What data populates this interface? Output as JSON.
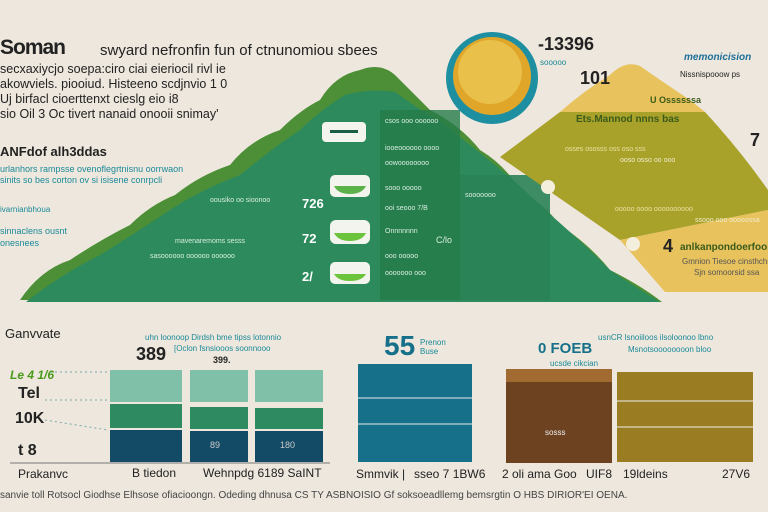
{
  "header": {
    "title": "Soman",
    "subtitle": "swyard nefronfin fun of ctnunomiou sbees",
    "intro_lines": [
      "secxaxiycjo soepa:ciro ciai eieriocil rivl ie",
      "akowviels. piooiud. Histeeno scdjnvio 1 0",
      "Uj birfacl cioerttenxt cieslg eio i8",
      "sio Oil 3 Oc tivert nanaid onooii snimay'"
    ]
  },
  "left_section": {
    "heading": "ANFdof alh3ddas",
    "lines": [
      "urlanhors rampsse ovenoflegrtnisnu oorrwaon",
      "sinits so bes corton ov si isisene conrpcli",
      "ivarnianbhoua",
      "sinnaclens ousnt",
      "onesnees"
    ]
  },
  "green_pyramid": {
    "left_values": [
      "726",
      "72",
      "2/"
    ],
    "left_labels": [
      "oousiko oo sioonoo",
      "mavenaremoms sesss",
      "sasoooooo oooooo oooooo"
    ],
    "right_labels": [
      "csos ooo oooooo",
      "iooeoooooo oooo",
      "oowoooooooo",
      "sooo ooooo",
      "ooi seooo 7/B",
      "Onnnnnnn",
      "ooo ooooo",
      "ooooooo ooo",
      "C/lo",
      "sooooooo"
    ]
  },
  "bowl": {
    "value": "-13396",
    "value2": "101",
    "label": "sooooo"
  },
  "yellow_pyramid": {
    "top_label": "U Ossssssa",
    "band_title": "Ets.Mannod nnns bas",
    "band_lines": [
      "osses ososss oss oso sss",
      "ooso osso oo ooo",
      "ooooo oooo oooooooooo",
      "ssooo ooo ooooossa"
    ],
    "right_number": "7",
    "right_value": "4",
    "right_title": "anlkanpondoerfoolo",
    "right_lines": [
      "Gmnion Tiesoe cinsthchse",
      "Sjn somoorsid ssa"
    ]
  },
  "brand": {
    "name": "memonicision",
    "tagline": "Nissnispooow  ps"
  },
  "bottom_left": {
    "heading": "Ganvvate",
    "big_value": "389",
    "note_lines": [
      "uhn loonoop Dirdsh bme tipss lotonnio",
      "[Oclon fsnsiooos soonnooo",
      "399."
    ],
    "axis_labels": [
      "Le 4 1/6",
      "Tel",
      "10K",
      "t 8"
    ],
    "bar_values": [
      "89",
      "180"
    ],
    "x_labels": [
      "Prakanvc",
      "B tiedon",
      "Wehnpdg 6189 SaINT"
    ]
  },
  "bottom_middle": {
    "big_value": "55",
    "unit": "Prenon Buse",
    "x_labels": [
      "Smmvik |",
      "sseo 7 1BW6"
    ]
  },
  "bottom_right": {
    "big_value": "0 FOEB",
    "unit": "ucsde  cikcian",
    "note_lines": [
      "usnCR lsnoiiloos ilsoloonoo lbno",
      "Msnotsoooooooon bloo"
    ],
    "bar_label": "sosss",
    "x_labels": [
      "2 oli ama Goo",
      "UIF8",
      "19ldeins",
      "27V6"
    ]
  },
  "footer": {
    "text": "sanvie toll Rotsocl Giodhse Elhsose ofiacioongn. Odeding dhnusa CS TY ASBNOISIO Gf soksoeadllemg bemsrgtin O HBS DIRIOR'EI OENA."
  },
  "colors": {
    "background": "#ede7dd",
    "green_dark": "#2d8a5c",
    "green_light": "#4c8f36",
    "teal": "#16708a",
    "navy": "#134b66",
    "mint": "#80c0a8",
    "yellow": "#e8c25c",
    "olive": "#a9a22a",
    "brown": "#6d4220",
    "gold": "#9a7c22"
  }
}
